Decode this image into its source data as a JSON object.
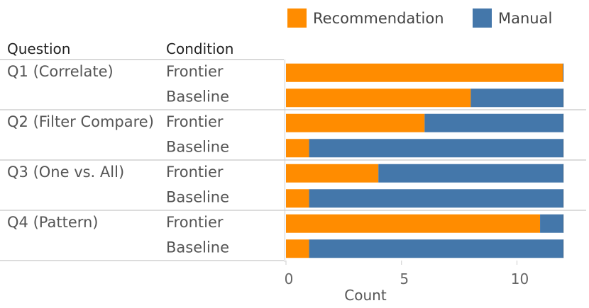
{
  "chart_data": {
    "type": "bar",
    "stacked": true,
    "orientation": "horizontal",
    "row_headers": [
      "Question",
      "Condition"
    ],
    "questions": [
      "Q1 (Correlate)",
      "Q2 (Filter Compare)",
      "Q3 (One vs. All)",
      "Q4 (Pattern)"
    ],
    "conditions": [
      "Frontier",
      "Baseline"
    ],
    "categories": [
      [
        "Q1 (Correlate)",
        "Frontier"
      ],
      [
        "Q1 (Correlate)",
        "Baseline"
      ],
      [
        "Q2 (Filter Compare)",
        "Frontier"
      ],
      [
        "Q2 (Filter Compare)",
        "Baseline"
      ],
      [
        "Q3 (One vs. All)",
        "Frontier"
      ],
      [
        "Q3 (One vs. All)",
        "Baseline"
      ],
      [
        "Q4 (Pattern)",
        "Frontier"
      ],
      [
        "Q4 (Pattern)",
        "Baseline"
      ]
    ],
    "series": [
      {
        "name": "Recommendation",
        "color": "#FF8C00",
        "values": [
          12,
          8,
          6,
          1,
          4,
          1,
          11,
          1
        ]
      },
      {
        "name": "Manual",
        "color": "#4477AA",
        "values": [
          0,
          4,
          6,
          11,
          8,
          11,
          1,
          11
        ]
      }
    ],
    "xlabel": "Count",
    "xlim": [
      0,
      12.6
    ],
    "xticks": [
      0,
      5,
      10
    ],
    "legend_position": "top"
  }
}
